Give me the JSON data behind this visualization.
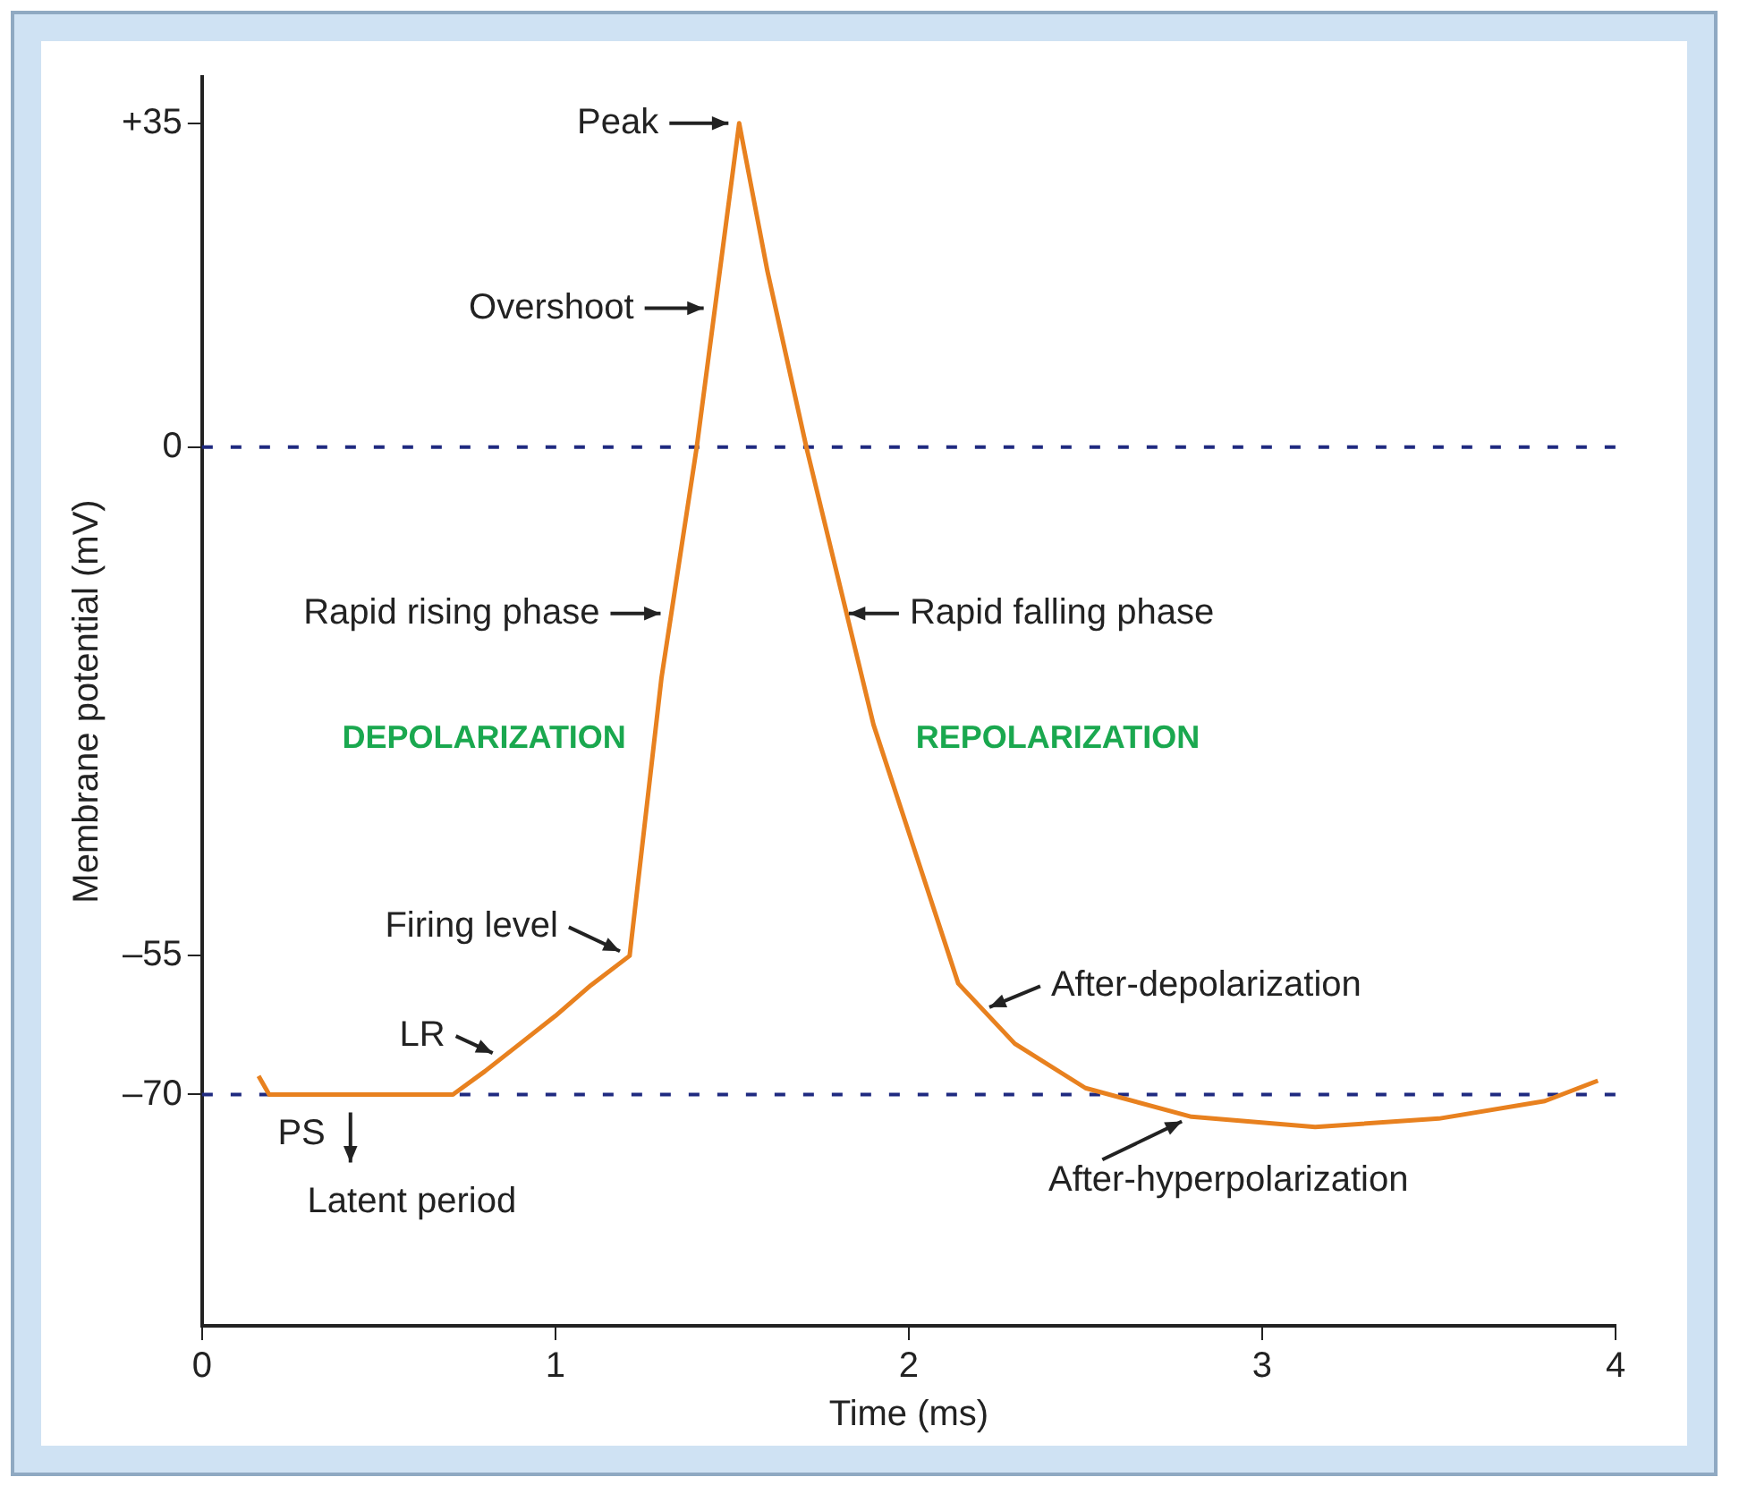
{
  "chart_data": {
    "type": "line",
    "xlabel": "Time (ms)",
    "ylabel": "Membrane potential (mV)",
    "x": [
      0.16,
      0.19,
      0.3,
      0.5,
      0.71,
      0.8,
      0.9,
      1.0,
      1.1,
      1.21,
      1.3,
      1.4,
      1.52,
      1.6,
      1.71,
      1.9,
      2.14,
      2.3,
      2.5,
      2.8,
      3.15,
      3.5,
      3.8,
      3.95
    ],
    "values": [
      -68,
      -70,
      -70,
      -70,
      -70,
      -67.5,
      -64.5,
      -61.5,
      -58.2,
      -55,
      -25,
      0,
      35,
      19,
      0,
      -30,
      -58,
      -64.5,
      -69.3,
      -72.4,
      -73.5,
      -72.6,
      -70.7,
      -68.5
    ],
    "color": "#e8811f",
    "line_style": "solid",
    "marker": "none",
    "grid": false,
    "legend": false,
    "xlim": [
      0,
      4
    ],
    "xticks": [
      0,
      1,
      2,
      3,
      4
    ],
    "ylim": [
      -95,
      40
    ],
    "yticks": [
      {
        "value": 35,
        "label": "+35"
      },
      0,
      {
        "value": -55,
        "label": "–55"
      },
      {
        "value": -70,
        "label": "–70"
      }
    ],
    "ref_lines": [
      {
        "axis": "y",
        "value": 0,
        "color": "#1f2a80",
        "line_style": "dashed"
      },
      {
        "axis": "y",
        "value": -70,
        "color": "#1f2a80",
        "line_style": "dashed"
      }
    ],
    "annotations": [
      {
        "text": "Peak",
        "x": 1.52,
        "y": 35
      },
      {
        "text": "Overshoot",
        "x": 1.45,
        "y": 15
      },
      {
        "text": "Rapid rising phase",
        "x": 1.328,
        "y": -18
      },
      {
        "text": "Rapid falling phase",
        "x": 1.8,
        "y": -18
      },
      "DEPOLARIZATION",
      "REPOLARIZATION",
      {
        "text": "Firing level",
        "x": 1.21,
        "y": -55
      },
      {
        "text": "LR",
        "x": 0.85,
        "y": -66
      },
      {
        "text": "PS",
        "x": 0.42,
        "y": -70
      },
      {
        "text": "Latent period",
        "x": 0.45,
        "y": -70
      },
      {
        "text": "After-depolarization",
        "x": 2.2,
        "y": -61
      },
      {
        "text": "After-hyperpolarization",
        "x": 2.8,
        "y": -72.4
      }
    ]
  }
}
